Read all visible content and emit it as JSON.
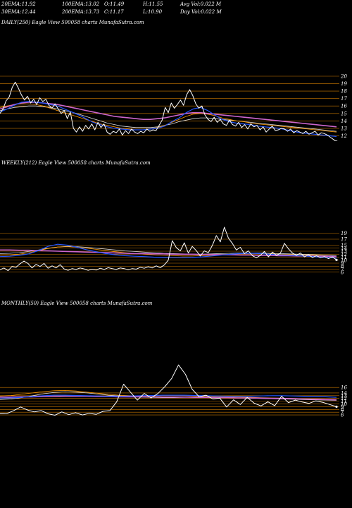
{
  "header": {
    "row1": [
      {
        "label": "20EMA:",
        "value": "11.92"
      },
      {
        "label": "100EMA:",
        "value": "13.02"
      },
      {
        "label": "O:",
        "value": "11.49"
      },
      {
        "label": "H:",
        "value": "11.55"
      },
      {
        "label": "Avg Vol:",
        "value": "0.022  M"
      }
    ],
    "row2": [
      {
        "label": "30EMA:",
        "value": "12.44"
      },
      {
        "label": "200EMA:",
        "value": "13.73"
      },
      {
        "label": "C:",
        "value": "11.17"
      },
      {
        "label": "L:",
        "value": "10.90"
      },
      {
        "label": "Day Vol:",
        "value": "0.022  M"
      }
    ]
  },
  "chart_data": [
    {
      "type": "line",
      "title": "DAILY(250) Eagle  View  500058  charts MunafaSutra.com",
      "ylim": [
        11,
        20
      ],
      "yticks": [
        "20",
        "19",
        "18",
        "17",
        "16",
        "15",
        "14",
        "13",
        "12"
      ],
      "hlines": [
        20,
        19,
        18,
        17,
        16,
        15,
        14,
        13,
        12
      ],
      "colors": {
        "price": "#ffffff",
        "ema20": "#2255ff",
        "ema30": "#cc66cc",
        "ema100": "#ff9900",
        "ema200": "#dddddd",
        "grid": "#cc7a00"
      },
      "series": [
        {
          "values": [
            15,
            15.6,
            16.7,
            17.2,
            18.5,
            19.2,
            18.4,
            17.5,
            16.8,
            17.3,
            16.4,
            16.9,
            16.2,
            17.1,
            16.6,
            16.9,
            16.1,
            15.7,
            16.3,
            15.6,
            15,
            15.4,
            14.3,
            15.2,
            13,
            12.5,
            13.2,
            12.6,
            13.4,
            12.9,
            13.6,
            12.8,
            13.8,
            13.1,
            13.6,
            12.5,
            12.2,
            12.6,
            12.4,
            12.9,
            12.1,
            12.7,
            12.3,
            12.9,
            12.5,
            12.3,
            12.6,
            12.4,
            12.9,
            12.6,
            12.8,
            12.7,
            13.4,
            14.1,
            15.8,
            15.1,
            16.4,
            15.7,
            16.2,
            16.8,
            16.1,
            17.5,
            18.2,
            17.4,
            16.3,
            15.7,
            16,
            14.8,
            14.2,
            13.9,
            14.5,
            13.8,
            14.2,
            13.6,
            13.4,
            14.1,
            13.5,
            13.3,
            13.8,
            13.1,
            13.5,
            12.9,
            13.6,
            13.2,
            13.4,
            12.8,
            13.2,
            12.5,
            12.9,
            13.3,
            12.7,
            12.8,
            13,
            12.9,
            12.6,
            12.9,
            12.4,
            12.7,
            12.5,
            12.3,
            12.6,
            12.2,
            12.4,
            12.6,
            12.1,
            12.4,
            12.3,
            12.1,
            11.8,
            11.5,
            11.2
          ]
        },
        {
          "values": [
            15.2,
            15.6,
            16.1,
            16.5,
            16.6,
            16.5,
            16.4,
            16.2,
            16.0,
            15.6,
            15.2,
            14.8,
            14.3,
            13.8,
            13.5,
            13.2,
            13.0,
            12.9,
            12.8,
            12.8,
            12.8,
            12.9,
            13.0,
            13.3,
            13.9,
            14.4,
            15.1,
            15.6,
            15.8,
            15.4,
            14.8,
            14.2,
            13.9,
            13.7,
            13.6,
            13.5,
            13.3,
            13.2,
            13.1,
            13.0,
            12.8,
            12.6,
            12.4,
            12.3,
            12.2,
            12.1,
            12.0,
            11.9
          ]
        },
        {
          "values": [
            15.6,
            15.9,
            16.2,
            16.4,
            16.5,
            16.5,
            16.4,
            16.3,
            16.2,
            16.0,
            15.8,
            15.6,
            15.4,
            15.2,
            15.0,
            14.8,
            14.6,
            14.5,
            14.4,
            14.3,
            14.2,
            14.2,
            14.3,
            14.4,
            14.6,
            14.8,
            15.0,
            15.1,
            15.1,
            15.0,
            14.9,
            14.8,
            14.7,
            14.6,
            14.5,
            14.4,
            14.3,
            14.2,
            14.1,
            14.0,
            13.9,
            13.8,
            13.7,
            13.6,
            13.5,
            13.4,
            13.3,
            13.2
          ]
        },
        {
          "values": [
            15.8,
            16.0,
            16.2,
            16.3,
            16.3,
            16.2,
            16.0,
            15.7,
            15.4,
            15.1,
            14.8,
            14.5,
            14.2,
            13.9,
            13.6,
            13.4,
            13.2,
            13.0,
            12.9,
            12.8,
            12.8,
            12.9,
            13.1,
            13.4,
            13.8,
            14.2,
            14.6,
            14.9,
            15.0,
            14.9,
            14.7,
            14.4,
            14.2,
            14.0,
            13.9,
            13.7,
            13.6,
            13.5,
            13.4,
            13.3,
            13.2,
            13.1,
            13.0,
            12.9,
            12.8,
            12.7,
            12.6,
            12.5
          ]
        },
        {
          "values": [
            15.4,
            15.6,
            15.8,
            15.9,
            16.0,
            16.0,
            15.9,
            15.8,
            15.6,
            15.4,
            15.2,
            14.9,
            14.6,
            14.3,
            14.0,
            13.7,
            13.5,
            13.3,
            13.2,
            13.1,
            13.1,
            13.1,
            13.2,
            13.4,
            13.6,
            13.9,
            14.1,
            14.3,
            14.4,
            14.4,
            14.3,
            14.2,
            14.1,
            14.0,
            13.9,
            13.8,
            13.7,
            13.6,
            13.5,
            13.4,
            13.3,
            13.2,
            13.1,
            13.0,
            12.9,
            12.8,
            12.7,
            12.6
          ]
        }
      ]
    },
    {
      "type": "line",
      "title": "WEEKLY(212) Eagle  View  500058  charts MunafaSutra.com",
      "ylim": [
        5,
        21
      ],
      "yticks": [
        "19",
        "17",
        "15",
        "14",
        "13",
        "12",
        "11",
        "10",
        "9",
        "8",
        "7",
        "6"
      ],
      "hlines": [
        19,
        17,
        15,
        14,
        13,
        12,
        11,
        10,
        9,
        8,
        7,
        6
      ],
      "colors": {
        "price": "#ffffff",
        "ema20": "#2255ff",
        "ema30": "#cc66cc",
        "ema100": "#ff9900",
        "ema200": "#dddddd",
        "grid": "#cc7a00"
      },
      "series": [
        {
          "values": [
            6.8,
            7.4,
            6.5,
            7.9,
            7.6,
            8.8,
            9.7,
            8.9,
            7.4,
            8.6,
            7.9,
            8.9,
            7.3,
            8.1,
            7.4,
            8.5,
            7.1,
            6.6,
            7.2,
            6.9,
            7.4,
            7.1,
            6.6,
            7.0,
            6.7,
            7.3,
            6.9,
            7.5,
            7.2,
            6.9,
            7.4,
            7.2,
            6.8,
            7.2,
            7.0,
            7.6,
            7.3,
            7.8,
            7.4,
            8.1,
            7.5,
            8.4,
            10,
            16.5,
            14.2,
            13.1,
            15.8,
            12.4,
            14.6,
            13.2,
            11.4,
            13.1,
            12.5,
            14.9,
            18.2,
            16.1,
            21,
            17.4,
            15.6,
            13.4,
            14.3,
            12.2,
            13.1,
            11.5,
            10.8,
            11.6,
            12.9,
            11.1,
            12.7,
            11.6,
            12.3,
            15.6,
            13.8,
            12.4,
            11.6,
            12.4,
            11.1,
            11.8,
            10.9,
            11.5,
            10.8,
            11.2,
            10.5,
            11.1,
            10.1
          ]
        },
        {
          "values": [
            11.2,
            11.3,
            11.6,
            12.1,
            13.2,
            14.6,
            15.3,
            15.0,
            14.3,
            13.5,
            12.8,
            12.2,
            11.8,
            11.5,
            11.3,
            11.2,
            11.0,
            10.9,
            10.8,
            10.8,
            10.9,
            11.1,
            11.4,
            11.7,
            12.0,
            12.2,
            12.3,
            12.2,
            12.0,
            11.8,
            11.7,
            11.5,
            11.3,
            11.1,
            10.9,
            10.7
          ]
        },
        {
          "values": [
            13.4,
            13.4,
            13.3,
            13.3,
            13.2,
            13.1,
            13.0,
            12.9,
            12.8,
            12.7,
            12.6,
            12.5,
            12.4,
            12.3,
            12.2,
            12.2,
            12.1,
            12.1,
            12.0,
            12.0,
            12.0,
            11.9,
            11.9,
            11.8,
            11.8,
            11.7,
            11.7,
            11.6,
            11.6,
            11.5,
            11.5,
            11.4,
            11.4,
            11.3,
            11.3,
            11.2
          ]
        },
        {
          "values": [
            11.6,
            11.7,
            12.0,
            12.5,
            13.2,
            13.9,
            14.4,
            14.5,
            14.3,
            14.0,
            13.6,
            13.2,
            12.8,
            12.5,
            12.2,
            12.0,
            11.8,
            11.6,
            11.5,
            11.4,
            11.4,
            11.5,
            11.6,
            11.8,
            12.0,
            12.1,
            12.2,
            12.2,
            12.1,
            12.0,
            11.9,
            11.8,
            11.6,
            11.5,
            11.4,
            11.2
          ]
        },
        {
          "values": [
            12.2,
            12.3,
            12.5,
            12.9,
            13.4,
            14.0,
            14.4,
            14.6,
            14.5,
            14.3,
            14.0,
            13.7,
            13.4,
            13.1,
            12.9,
            12.7,
            12.5,
            12.3,
            12.2,
            12.1,
            12.0,
            12.0,
            12.1,
            12.2,
            12.3,
            12.4,
            12.4,
            12.4,
            12.3,
            12.2,
            12.1,
            12.0,
            11.9,
            11.8,
            11.7,
            11.5
          ]
        }
      ]
    },
    {
      "type": "line",
      "title": "MONTHLY(50) Eagle  View  500058  charts MunafaSutra.com",
      "ylim": [
        5,
        24
      ],
      "yticks": [
        "16",
        "14",
        "13",
        "12",
        "11",
        "10",
        "9",
        "8",
        "7",
        "6"
      ],
      "hlines": [
        16,
        14,
        13,
        12,
        11,
        10,
        9,
        8,
        7,
        6
      ],
      "colors": {
        "price": "#ffffff",
        "ema20": "#2255ff",
        "ema30": "#cc66cc",
        "ema100": "#ff9900",
        "ema200": "#dddddd",
        "grid": "#cc7a00"
      },
      "series": [
        {
          "values": [
            6.4,
            6.5,
            7.6,
            8.9,
            7.8,
            7.1,
            7.6,
            6.4,
            5.9,
            7.1,
            6.1,
            6.8,
            6.0,
            6.6,
            6.2,
            7.3,
            7.6,
            10.8,
            17.2,
            14.3,
            11.4,
            13.8,
            12.2,
            13.8,
            16.3,
            19.3,
            24.2,
            20.8,
            15.3,
            12.6,
            13.2,
            11.8,
            12.1,
            8.9,
            11.5,
            9.8,
            12.4,
            10.3,
            9.3,
            10.8,
            9.4,
            12.8,
            10.5,
            11.4,
            10.7,
            10.2,
            11.1,
            10.6,
            9.8,
            9.0
          ]
        },
        {
          "values": [
            12.1,
            12.2,
            12.4,
            12.7,
            13.0,
            13.2,
            13.2,
            13.1,
            13.0,
            12.9,
            12.8,
            12.8,
            12.9,
            13.0,
            13.1,
            13.2,
            13.2,
            13.2,
            13.1,
            13.0,
            12.9,
            12.8,
            12.8,
            12.8,
            12.9,
            13.0,
            13.0,
            12.9,
            12.8,
            12.7,
            12.6,
            12.4
          ]
        },
        {
          "values": [
            12.5,
            12.5,
            12.6,
            12.6,
            12.7,
            12.7,
            12.8,
            12.8,
            12.8,
            12.7,
            12.7,
            12.6,
            12.6,
            12.6,
            12.6,
            12.5,
            12.5,
            12.5,
            12.4,
            12.4,
            12.3,
            12.3,
            12.2,
            12.2,
            12.1,
            12.0,
            12.0,
            11.9,
            11.8,
            11.7,
            11.6,
            11.5
          ]
        },
        {
          "values": [
            12.9,
            13.1,
            13.5,
            14.0,
            14.5,
            14.8,
            14.9,
            14.7,
            14.3,
            13.9,
            13.5,
            13.2,
            13.0,
            12.8,
            12.7,
            12.6,
            12.5,
            12.6,
            12.7,
            12.8,
            12.7,
            12.6,
            12.5,
            12.4,
            12.3,
            12.2,
            12.1,
            12.0,
            11.9,
            11.8,
            11.7,
            11.6
          ]
        },
        {
          "values": [
            11.6,
            11.8,
            12.3,
            13.0,
            13.7,
            14.2,
            14.4,
            14.3,
            14.0,
            13.6,
            13.2,
            12.9,
            12.7,
            12.5,
            12.4,
            12.3,
            12.3,
            12.4,
            12.5,
            12.5,
            12.4,
            12.3,
            12.2,
            12.1,
            12.0,
            11.9,
            11.8,
            11.7,
            11.6,
            11.5,
            11.4,
            11.3
          ]
        }
      ]
    }
  ]
}
